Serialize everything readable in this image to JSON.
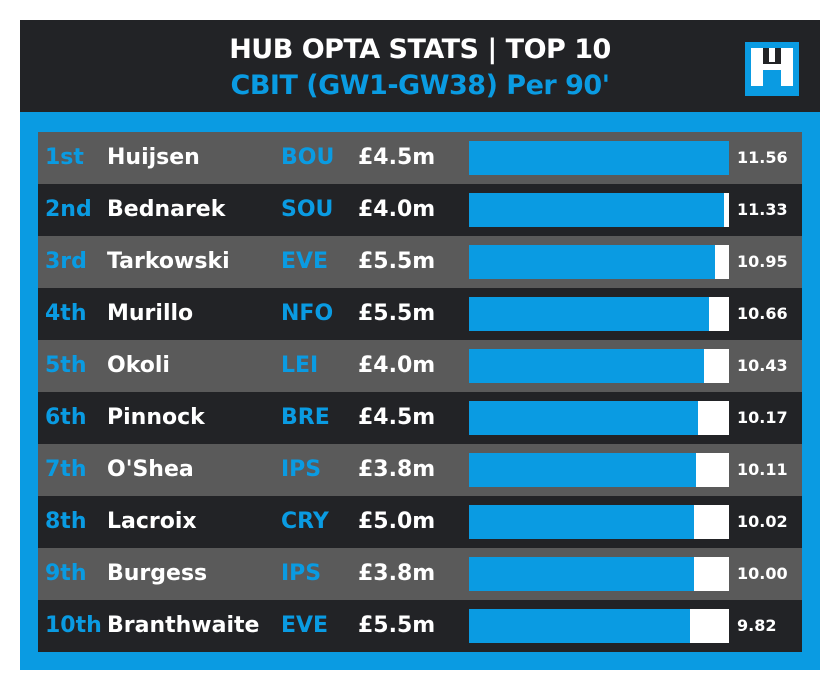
{
  "header": {
    "title": "HUB OPTA STATS | TOP 10",
    "subtitle": "CBIT (GW1-GW38) Per 90'",
    "logo_text": "H"
  },
  "colors": {
    "accent": "#0a9be2",
    "dark": "#222326",
    "grey": "#5a5a5a"
  },
  "chart_data": {
    "type": "bar",
    "title": "HUB OPTA STATS | TOP 10",
    "subtitle": "CBIT (GW1-GW38) Per 90'",
    "xlim": [
      0,
      11.56
    ],
    "rows": [
      {
        "rank": "1st",
        "name": "Huijsen",
        "team": "BOU",
        "price": "£4.5m",
        "value": 11.56,
        "label": "11.56"
      },
      {
        "rank": "2nd",
        "name": "Bednarek",
        "team": "SOU",
        "price": "£4.0m",
        "value": 11.33,
        "label": "11.33"
      },
      {
        "rank": "3rd",
        "name": "Tarkowski",
        "team": "EVE",
        "price": "£5.5m",
        "value": 10.95,
        "label": "10.95"
      },
      {
        "rank": "4th",
        "name": "Murillo",
        "team": "NFO",
        "price": "£5.5m",
        "value": 10.66,
        "label": "10.66"
      },
      {
        "rank": "5th",
        "name": "Okoli",
        "team": "LEI",
        "price": "£4.0m",
        "value": 10.43,
        "label": "10.43"
      },
      {
        "rank": "6th",
        "name": "Pinnock",
        "team": "BRE",
        "price": "£4.5m",
        "value": 10.17,
        "label": "10.17"
      },
      {
        "rank": "7th",
        "name": "O'Shea",
        "team": "IPS",
        "price": "£3.8m",
        "value": 10.11,
        "label": "10.11"
      },
      {
        "rank": "8th",
        "name": "Lacroix",
        "team": "CRY",
        "price": "£5.0m",
        "value": 10.02,
        "label": "10.02"
      },
      {
        "rank": "9th",
        "name": "Burgess",
        "team": "IPS",
        "price": "£3.8m",
        "value": 10.0,
        "label": "10.00"
      },
      {
        "rank": "10th",
        "name": "Branthwaite",
        "team": "EVE",
        "price": "£5.5m",
        "value": 9.82,
        "label": "9.82"
      }
    ]
  }
}
